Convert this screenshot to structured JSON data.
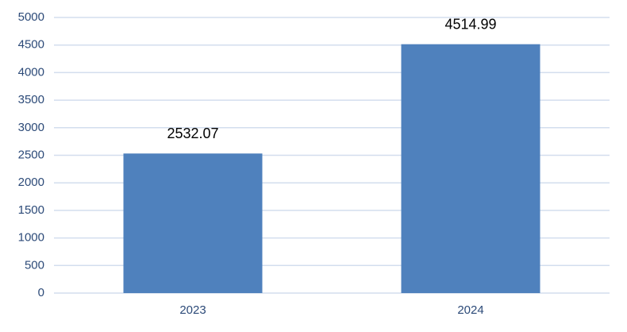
{
  "chart_data": {
    "type": "bar",
    "categories": [
      "2023",
      "2024"
    ],
    "values": [
      2532.07,
      4514.99
    ],
    "color": "#4f81bd",
    "ylim": [
      0,
      5000
    ],
    "yticks": [
      0,
      500,
      1000,
      1500,
      2000,
      2500,
      3000,
      3500,
      4000,
      4500,
      5000
    ],
    "grid": true
  }
}
